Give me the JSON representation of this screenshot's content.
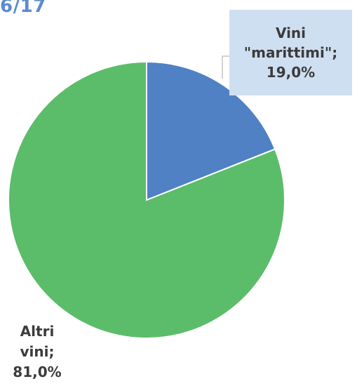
{
  "header": {
    "title_fragment": "6/17"
  },
  "chart_data": {
    "type": "pie",
    "start_angle_deg": 0,
    "direction": "clockwise",
    "slices": [
      {
        "name": "Vini \"marittimi\"",
        "value": 19.0,
        "color": "#4f81c4",
        "label_lines": [
          "Vini",
          "\"marittimi\";",
          "19,0%"
        ]
      },
      {
        "name": "Altri vini",
        "value": 81.0,
        "color": "#5bbd6a",
        "label_lines": [
          "Altri",
          "vini;",
          "81,0%"
        ]
      }
    ]
  }
}
